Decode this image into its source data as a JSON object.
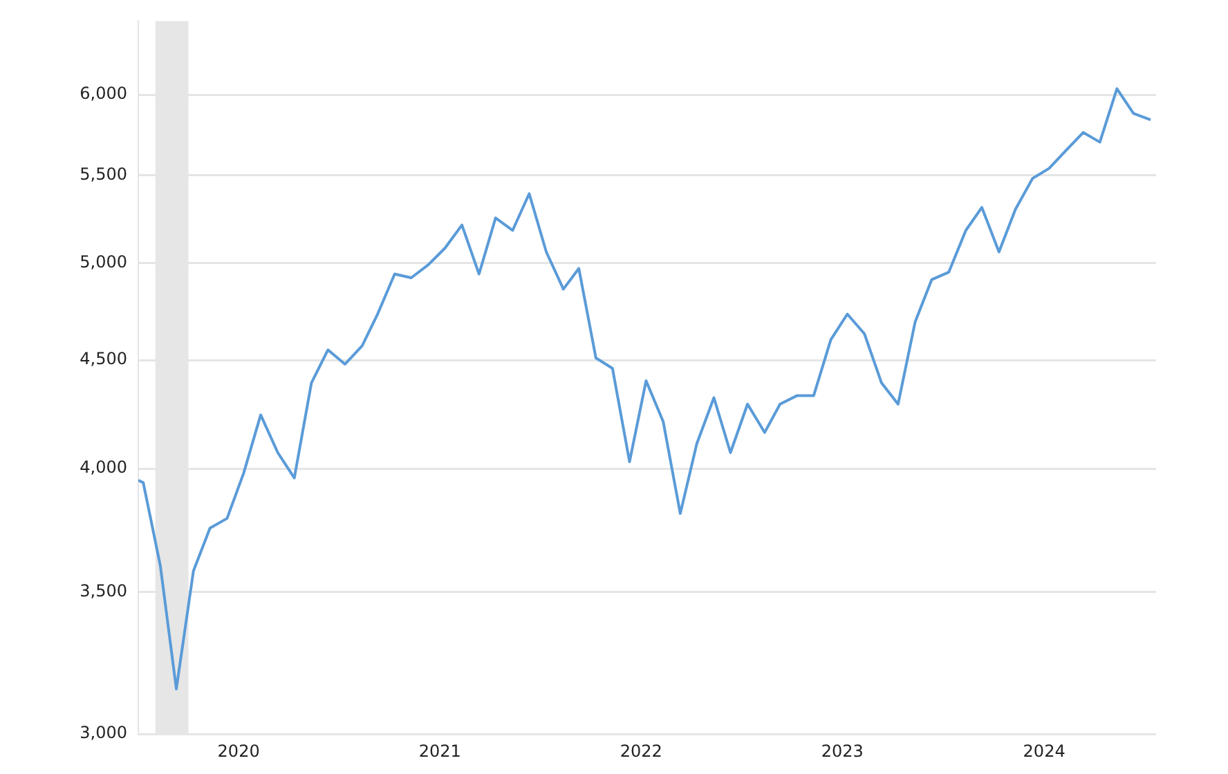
{
  "chart_data": {
    "type": "line",
    "log": "y",
    "grid": "y",
    "legend": false,
    "marker": "none",
    "line_style": "solid",
    "x": [
      "2020-01-01",
      "2020-01-10",
      "2020-02-10",
      "2020-03-10",
      "2020-04-10",
      "2020-05-10",
      "2020-06-10",
      "2020-07-10",
      "2020-08-10",
      "2020-09-10",
      "2020-10-10",
      "2020-11-10",
      "2020-12-10",
      "2021-01-10",
      "2021-02-10",
      "2021-03-10",
      "2021-04-10",
      "2021-05-10",
      "2021-06-10",
      "2021-07-10",
      "2021-08-10",
      "2021-09-10",
      "2021-10-10",
      "2021-11-10",
      "2021-12-10",
      "2022-01-10",
      "2022-02-10",
      "2022-03-10",
      "2022-04-10",
      "2022-05-10",
      "2022-06-10",
      "2022-07-10",
      "2022-08-10",
      "2022-09-10",
      "2022-10-10",
      "2022-11-10",
      "2022-12-10",
      "2023-01-10",
      "2023-02-10",
      "2023-03-10",
      "2023-04-10",
      "2023-05-10",
      "2023-06-10",
      "2023-07-10",
      "2023-08-10",
      "2023-09-10",
      "2023-10-10",
      "2023-11-10",
      "2023-12-10",
      "2024-01-10",
      "2024-02-10",
      "2024-03-10",
      "2024-04-10",
      "2024-05-10",
      "2024-06-10",
      "2024-07-10",
      "2024-08-10",
      "2024-09-10",
      "2024-10-10",
      "2024-11-10",
      "2024-12-10",
      "2025-01-10"
    ],
    "series": [
      {
        "color": "#5a9bd8",
        "values": [
          3950,
          3940,
          3600,
          3150,
          3580,
          3750,
          3790,
          3980,
          4240,
          4070,
          3960,
          4390,
          4550,
          4480,
          4570,
          4730,
          4940,
          4920,
          4990,
          5080,
          5210,
          4940,
          5250,
          5180,
          5390,
          5060,
          4860,
          4970,
          4510,
          4460,
          4030,
          4400,
          4210,
          3810,
          4110,
          4320,
          4070,
          4290,
          4160,
          4290,
          4330,
          4330,
          4600,
          4730,
          4630,
          4390,
          4290,
          4690,
          4910,
          4950,
          5180,
          5310,
          5060,
          5300,
          5480,
          5540,
          5650,
          5760,
          5700,
          6040,
          5880,
          5840
        ]
      }
    ],
    "xlim": [
      "2020-01-01",
      "2025-01-20"
    ],
    "xticks": [
      {
        "value": "2020-07-01",
        "label": "2020"
      },
      {
        "value": "2021-07-01",
        "label": "2021"
      },
      {
        "value": "2022-07-01",
        "label": "2022"
      },
      {
        "value": "2023-07-01",
        "label": "2023"
      },
      {
        "value": "2024-07-01",
        "label": "2024"
      }
    ],
    "ylim": [
      3000,
      6500
    ],
    "yticks": [
      {
        "value": 3000,
        "label": "3,000"
      },
      {
        "value": 3500,
        "label": "3,500"
      },
      {
        "value": 4000,
        "label": "4,000"
      },
      {
        "value": 4500,
        "label": "4,500"
      },
      {
        "value": 5000,
        "label": "5,000"
      },
      {
        "value": 5500,
        "label": "5,500"
      },
      {
        "value": 6000,
        "label": "6,000"
      }
    ],
    "bands": [
      {
        "axis": "x",
        "from": "2020-02-01",
        "to": "2020-04-01",
        "color": "#e6e6e6"
      }
    ]
  }
}
